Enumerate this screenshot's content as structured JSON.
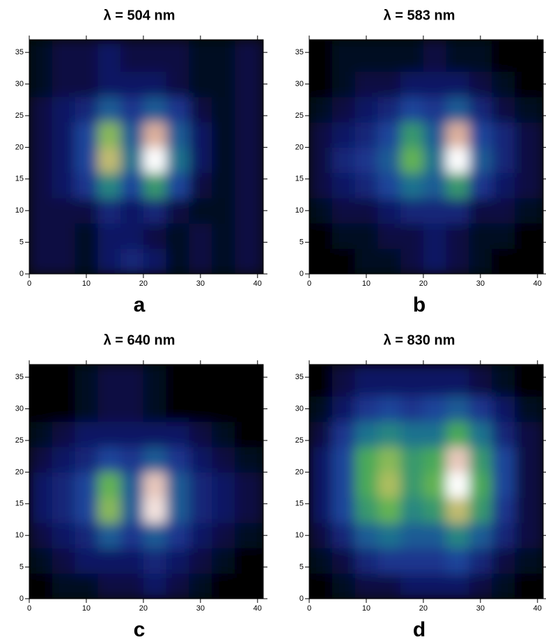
{
  "chart_data": [
    {
      "type": "heatmap",
      "title": "λ = 504 nm",
      "panel_label": "a",
      "xbins": [
        0,
        4,
        8,
        12,
        16,
        20,
        24,
        28,
        32,
        36,
        41
      ],
      "ybins": [
        0,
        4,
        8,
        12,
        16,
        20,
        24,
        28,
        32,
        37
      ],
      "xlim": [
        0,
        41
      ],
      "ylim": [
        0,
        37
      ],
      "xticks": [
        0,
        10,
        20,
        30,
        40
      ],
      "yticks": [
        0,
        5,
        10,
        15,
        20,
        25,
        30,
        35
      ],
      "colorscale": [
        "#000000",
        "#0a1660",
        "#1f3f9c",
        "#1f7f8a",
        "#4fb050",
        "#b8c060",
        "#e0b0a0",
        "#ffffff"
      ],
      "z": [
        [
          0.1,
          0.1,
          0.05,
          0.15,
          0.2,
          0.15,
          0.05,
          0.1,
          0.05,
          0.1
        ],
        [
          0.1,
          0.1,
          0.05,
          0.15,
          0.15,
          0.1,
          0.05,
          0.1,
          0.05,
          0.1
        ],
        [
          0.1,
          0.1,
          0.1,
          0.2,
          0.15,
          0.2,
          0.1,
          0.05,
          0.05,
          0.1
        ],
        [
          0.1,
          0.15,
          0.25,
          0.45,
          0.3,
          0.5,
          0.3,
          0.1,
          0.05,
          0.1
        ],
        [
          0.1,
          0.15,
          0.3,
          0.75,
          0.4,
          1.0,
          0.4,
          0.15,
          0.05,
          0.1
        ],
        [
          0.1,
          0.15,
          0.3,
          0.65,
          0.35,
          0.85,
          0.35,
          0.15,
          0.05,
          0.1
        ],
        [
          0.1,
          0.15,
          0.2,
          0.35,
          0.25,
          0.35,
          0.25,
          0.1,
          0.05,
          0.1
        ],
        [
          0.05,
          0.1,
          0.1,
          0.15,
          0.15,
          0.15,
          0.1,
          0.05,
          0.05,
          0.1
        ],
        [
          0.05,
          0.1,
          0.1,
          0.15,
          0.1,
          0.1,
          0.1,
          0.05,
          0.05,
          0.1
        ]
      ]
    },
    {
      "type": "heatmap",
      "title": "λ = 583 nm",
      "panel_label": "b",
      "xbins": [
        0,
        4,
        8,
        12,
        16,
        20,
        24,
        28,
        32,
        36,
        41
      ],
      "ybins": [
        0,
        4,
        8,
        12,
        16,
        20,
        24,
        28,
        32,
        37
      ],
      "xlim": [
        0,
        41
      ],
      "ylim": [
        0,
        37
      ],
      "xticks": [
        0,
        10,
        20,
        30,
        40
      ],
      "yticks": [
        0,
        5,
        10,
        15,
        20,
        25,
        30,
        35
      ],
      "colorscale": [
        "#000000",
        "#0a1660",
        "#1f3f9c",
        "#1f7f8a",
        "#4fb050",
        "#b8c060",
        "#e0b0a0",
        "#ffffff"
      ],
      "z": [
        [
          0,
          0,
          0.05,
          0.05,
          0.1,
          0.15,
          0.1,
          0.05,
          0,
          0
        ],
        [
          0,
          0.05,
          0.05,
          0.1,
          0.1,
          0.15,
          0.1,
          0.05,
          0.05,
          0
        ],
        [
          0.05,
          0.1,
          0.1,
          0.15,
          0.2,
          0.2,
          0.2,
          0.1,
          0.1,
          0.05
        ],
        [
          0.1,
          0.15,
          0.2,
          0.3,
          0.4,
          0.35,
          0.5,
          0.25,
          0.15,
          0.1
        ],
        [
          0.1,
          0.2,
          0.25,
          0.35,
          0.6,
          0.4,
          1.0,
          0.35,
          0.2,
          0.1
        ],
        [
          0.1,
          0.15,
          0.2,
          0.3,
          0.5,
          0.35,
          0.85,
          0.3,
          0.2,
          0.1
        ],
        [
          0.05,
          0.1,
          0.15,
          0.2,
          0.3,
          0.25,
          0.35,
          0.2,
          0.1,
          0.05
        ],
        [
          0,
          0.05,
          0.1,
          0.1,
          0.15,
          0.15,
          0.15,
          0.1,
          0.05,
          0
        ],
        [
          0,
          0.05,
          0.05,
          0.05,
          0.05,
          0.1,
          0.05,
          0.05,
          0,
          0
        ]
      ]
    },
    {
      "type": "heatmap",
      "title": "λ = 640 nm",
      "panel_label": "c",
      "xbins": [
        0,
        4,
        8,
        12,
        16,
        20,
        24,
        28,
        32,
        36,
        41
      ],
      "ybins": [
        0,
        4,
        8,
        12,
        16,
        20,
        24,
        28,
        32,
        37
      ],
      "xlim": [
        0,
        41
      ],
      "ylim": [
        0,
        37
      ],
      "xticks": [
        0,
        10,
        20,
        30,
        40
      ],
      "yticks": [
        0,
        5,
        10,
        15,
        20,
        25,
        30,
        35
      ],
      "colorscale": [
        "#000000",
        "#0a1660",
        "#1f3f9c",
        "#1f7f8a",
        "#4fb050",
        "#b8c060",
        "#e0b0a0",
        "#ffffff"
      ],
      "z": [
        [
          0,
          0.05,
          0.05,
          0.1,
          0.1,
          0.15,
          0.1,
          0.05,
          0,
          0
        ],
        [
          0.05,
          0.1,
          0.15,
          0.15,
          0.15,
          0.2,
          0.15,
          0.1,
          0.05,
          0
        ],
        [
          0.1,
          0.15,
          0.2,
          0.35,
          0.25,
          0.35,
          0.25,
          0.15,
          0.1,
          0.05
        ],
        [
          0.15,
          0.2,
          0.3,
          0.65,
          0.35,
          0.95,
          0.35,
          0.2,
          0.15,
          0.1
        ],
        [
          0.15,
          0.2,
          0.3,
          0.6,
          0.35,
          0.9,
          0.35,
          0.2,
          0.15,
          0.1
        ],
        [
          0.1,
          0.15,
          0.2,
          0.3,
          0.25,
          0.35,
          0.25,
          0.15,
          0.1,
          0.05
        ],
        [
          0.05,
          0.1,
          0.15,
          0.15,
          0.15,
          0.15,
          0.15,
          0.1,
          0.05,
          0
        ],
        [
          0,
          0,
          0.05,
          0.1,
          0.1,
          0.05,
          0,
          0,
          0,
          0
        ],
        [
          0,
          0,
          0.05,
          0.1,
          0.1,
          0.05,
          0,
          0,
          0,
          0
        ]
      ]
    },
    {
      "type": "heatmap",
      "title": "λ = 830 nm",
      "panel_label": "d",
      "xbins": [
        0,
        4,
        8,
        12,
        16,
        20,
        24,
        28,
        32,
        36,
        41
      ],
      "ybins": [
        0,
        4,
        8,
        12,
        16,
        20,
        24,
        28,
        32,
        37
      ],
      "xlim": [
        0,
        41
      ],
      "ylim": [
        0,
        37
      ],
      "xticks": [
        0,
        10,
        20,
        30,
        40
      ],
      "yticks": [
        0,
        5,
        10,
        15,
        20,
        25,
        30,
        35
      ],
      "colorscale": [
        "#000000",
        "#0a1660",
        "#1f3f9c",
        "#1f7f8a",
        "#4fb050",
        "#b8c060",
        "#e0b0a0",
        "#ffffff"
      ],
      "z": [
        [
          0,
          0.05,
          0.1,
          0.1,
          0.15,
          0.15,
          0.15,
          0.1,
          0.05,
          0
        ],
        [
          0.05,
          0.1,
          0.2,
          0.25,
          0.25,
          0.25,
          0.3,
          0.2,
          0.1,
          0.05
        ],
        [
          0.1,
          0.2,
          0.35,
          0.4,
          0.35,
          0.35,
          0.45,
          0.35,
          0.2,
          0.1
        ],
        [
          0.15,
          0.3,
          0.5,
          0.6,
          0.45,
          0.5,
          0.75,
          0.5,
          0.25,
          0.1
        ],
        [
          0.15,
          0.3,
          0.55,
          0.7,
          0.5,
          0.6,
          1.0,
          0.55,
          0.3,
          0.1
        ],
        [
          0.15,
          0.3,
          0.55,
          0.65,
          0.5,
          0.55,
          0.9,
          0.5,
          0.3,
          0.1
        ],
        [
          0.1,
          0.25,
          0.4,
          0.45,
          0.4,
          0.4,
          0.55,
          0.4,
          0.2,
          0.1
        ],
        [
          0.05,
          0.15,
          0.25,
          0.3,
          0.25,
          0.3,
          0.35,
          0.25,
          0.15,
          0.05
        ],
        [
          0,
          0.1,
          0.15,
          0.15,
          0.15,
          0.15,
          0.15,
          0.1,
          0.05,
          0
        ]
      ]
    }
  ]
}
